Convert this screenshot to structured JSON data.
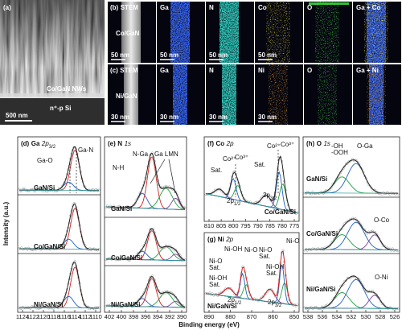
{
  "panel_a": {
    "label": "(a)",
    "nanowires": "Co/GaN NWs",
    "substrate": "n⁺-p Si",
    "scale_bar": "500 nm"
  },
  "panel_b": {
    "label": "(b)",
    "sample": "Co/GaN",
    "maps": [
      "STEM",
      "Ga",
      "N",
      "Co",
      "O",
      "Ga + Co"
    ],
    "scale_bar": "50 nm"
  },
  "panel_c": {
    "label": "(c)",
    "sample": "Ni/GaN",
    "maps": [
      "STEM",
      "Ga",
      "N",
      "Ni",
      "O",
      "Ga + Ni"
    ],
    "scale_bar": "30 nm"
  },
  "axis": {
    "x_label": "Binding energy (eV)",
    "y_label": "Intensity (a.u.)"
  },
  "panel_d": {
    "label": "(d)",
    "element": "Ga",
    "orbital": "2p",
    "subscript": "3/2",
    "peaks": [
      [
        "Ga-N"
      ],
      [
        "Ga-O"
      ]
    ],
    "samples": [
      "GaN/Si",
      "Co/GaN/Si",
      "Ni/GaN/Si"
    ],
    "xticks": [
      1124,
      1122,
      1120,
      1118,
      1116,
      1114,
      1112,
      1110
    ]
  },
  "panel_e": {
    "label": "(e)",
    "element": "N",
    "orbital": "1s",
    "peaks": [
      [
        "N-Ga"
      ],
      [
        "N-H"
      ],
      [
        "Ga LMN"
      ]
    ],
    "samples": [
      "GaN/Si",
      "Co/GaN/Si",
      "Ni/GaN/Si"
    ],
    "xticks": [
      402,
      400,
      398,
      396,
      394,
      392,
      390
    ]
  },
  "panel_f": {
    "label": "(f)",
    "element": "Co",
    "orbital": "2p",
    "peaks": [
      [
        "Sat."
      ],
      [
        "Co²⁺"
      ],
      [
        "Co³⁺"
      ],
      [
        "Sat."
      ],
      [
        "Co²⁺"
      ],
      [
        "Co³⁺"
      ]
    ],
    "spin_orbit": [
      {
        "main": "2p",
        "sub": "1/2"
      },
      {
        "main": "2p",
        "sub": "3/2"
      }
    ],
    "sample": "Co/GaN/Si",
    "xticks": [
      810,
      805,
      800,
      795,
      790,
      785,
      780,
      775
    ]
  },
  "panel_g": {
    "label": "(g)",
    "element": "Ni",
    "orbital": "2p",
    "peaks": [
      [
        "Ni-OH"
      ],
      [
        "Ni-O"
      ],
      [
        "Ni-O",
        "Sat."
      ],
      [
        "Ni-OH",
        "Sat."
      ],
      [
        "Ni-O",
        "Sat."
      ],
      [
        "Ni-OH",
        "Sat."
      ],
      [
        "Ni-O"
      ]
    ],
    "spin_orbit": [
      {
        "main": "2p",
        "sub": "1/2"
      },
      {
        "main": "2p",
        "sub": "3/2"
      }
    ],
    "sample": "Ni/GaN/Si",
    "xticks": [
      890,
      880,
      870,
      860,
      850
    ]
  },
  "panel_h": {
    "label": "(h)",
    "element": "O",
    "orbital": "1s",
    "peaks": [
      [
        "-OH",
        "-OOH"
      ],
      [
        "O-Ga"
      ],
      [
        "O-Co"
      ],
      [
        "O-Ni"
      ]
    ],
    "samples": [
      "GaN/Si",
      "Co/GaN/Si",
      "Ni/GaN/Si"
    ],
    "xticks": [
      538,
      536,
      534,
      532,
      530,
      528,
      526
    ]
  }
}
